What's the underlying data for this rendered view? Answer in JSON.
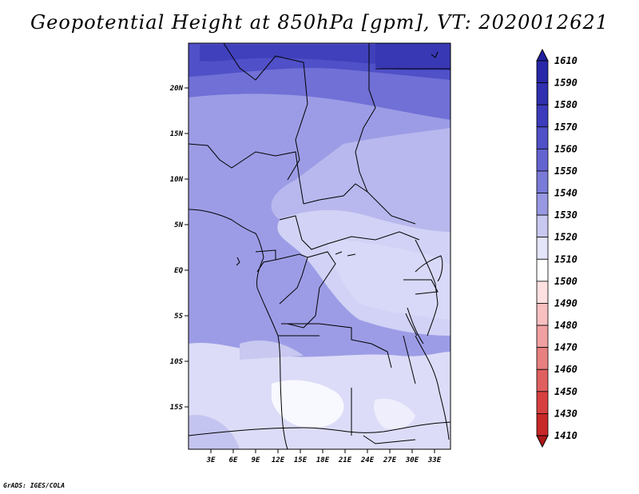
{
  "title": "Geopotential Height at 850hPa [gpm], VT: 2020012621",
  "credit": "GrADS: IGES/COLA",
  "lat_ticks": [
    "20N",
    "15N",
    "10N",
    "5N",
    "EQ",
    "5S",
    "10S",
    "15S"
  ],
  "lon_ticks": [
    "3E",
    "6E",
    "9E",
    "12E",
    "15E",
    "18E",
    "21E",
    "24E",
    "27E",
    "30E",
    "33E"
  ],
  "colorbar": {
    "labels": [
      "1610",
      "1590",
      "1580",
      "1570",
      "1560",
      "1550",
      "1540",
      "1530",
      "1520",
      "1510",
      "1500",
      "1490",
      "1480",
      "1470",
      "1460",
      "1450",
      "1430",
      "1410"
    ],
    "colors": [
      "#2020a0",
      "#2828a8",
      "#3030b0",
      "#3c3cbc",
      "#5050c8",
      "#6464d0",
      "#7a7ad8",
      "#9898e2",
      "#c8c8f0",
      "#e4e4fa",
      "#ffffff",
      "#fde0e0",
      "#f8c0c0",
      "#f0a0a0",
      "#e88080",
      "#e06060",
      "#d84040",
      "#c82828",
      "#b01818"
    ]
  }
}
